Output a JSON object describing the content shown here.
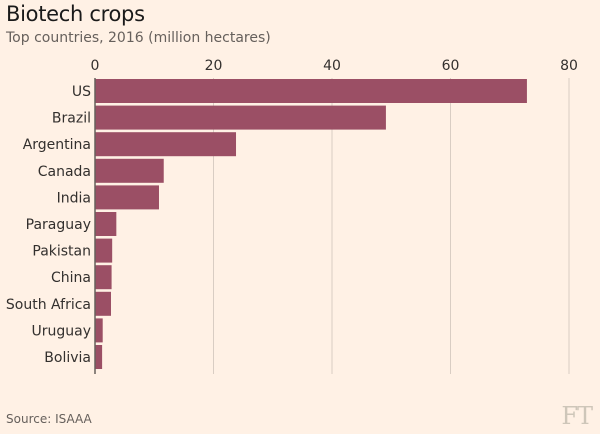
{
  "chart_data": {
    "type": "bar",
    "orientation": "horizontal",
    "title": "Biotech crops",
    "subtitle": "Top countries, 2016 (million hectares)",
    "categories": [
      "US",
      "Brazil",
      "Argentina",
      "Canada",
      "India",
      "Paraguay",
      "Pakistan",
      "China",
      "South Africa",
      "Uruguay",
      "Bolivia"
    ],
    "values": [
      72.9,
      49.1,
      23.8,
      11.6,
      10.8,
      3.6,
      2.9,
      2.8,
      2.7,
      1.3,
      1.2
    ],
    "xlim": [
      0,
      80
    ],
    "xticks": [
      0,
      20,
      40,
      60,
      80
    ],
    "grid": true,
    "bar_color": "#9b4f65"
  },
  "source": "Source: ISAAA",
  "logo": "FT"
}
